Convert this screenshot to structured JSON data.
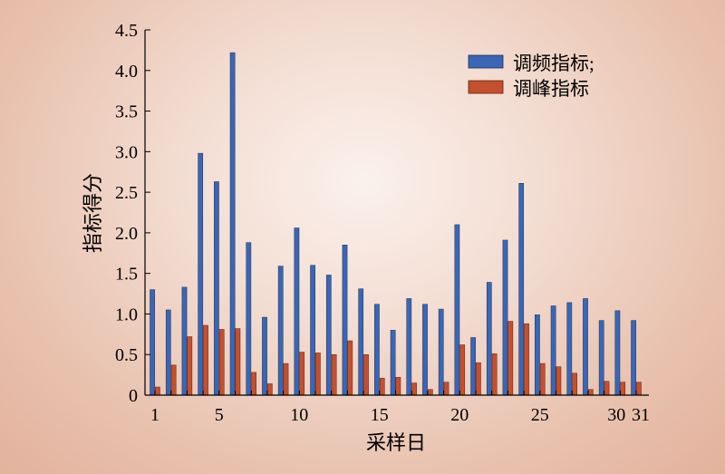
{
  "chart_data": {
    "type": "bar",
    "xlabel": "采样日",
    "ylabel": "指标得分",
    "ylim": [
      0,
      4.5
    ],
    "yticks": [
      "0",
      "0.5",
      "1.0",
      "1.5",
      "2.0",
      "2.5",
      "3.0",
      "3.5",
      "4.0",
      "4.5"
    ],
    "xticks": [
      "1",
      "5",
      "10",
      "15",
      "20",
      "25",
      "30",
      "31"
    ],
    "categories": [
      1,
      2,
      3,
      4,
      5,
      6,
      7,
      8,
      9,
      10,
      11,
      12,
      13,
      14,
      15,
      16,
      17,
      18,
      19,
      20,
      21,
      22,
      23,
      24,
      25,
      26,
      27,
      28,
      29,
      30,
      31
    ],
    "legend_position": "top-right",
    "series": [
      {
        "name": "调频指标;",
        "color": "#3a66b5",
        "values": [
          1.3,
          1.05,
          1.33,
          2.98,
          2.63,
          4.22,
          1.88,
          0.96,
          1.59,
          2.06,
          1.6,
          1.48,
          1.85,
          1.31,
          1.12,
          0.8,
          1.19,
          1.12,
          1.06,
          2.1,
          0.71,
          1.39,
          1.91,
          2.61,
          0.99,
          1.1,
          1.14,
          1.19,
          0.92,
          1.04,
          0.92
        ]
      },
      {
        "name": "调峰指标",
        "color": "#c4502d",
        "values": [
          0.1,
          0.37,
          0.72,
          0.86,
          0.81,
          0.82,
          0.28,
          0.14,
          0.39,
          0.53,
          0.52,
          0.5,
          0.67,
          0.5,
          0.21,
          0.22,
          0.15,
          0.07,
          0.16,
          0.62,
          0.4,
          0.51,
          0.91,
          0.88,
          0.39,
          0.35,
          0.27,
          0.07,
          0.17,
          0.16,
          0.16
        ]
      }
    ]
  }
}
